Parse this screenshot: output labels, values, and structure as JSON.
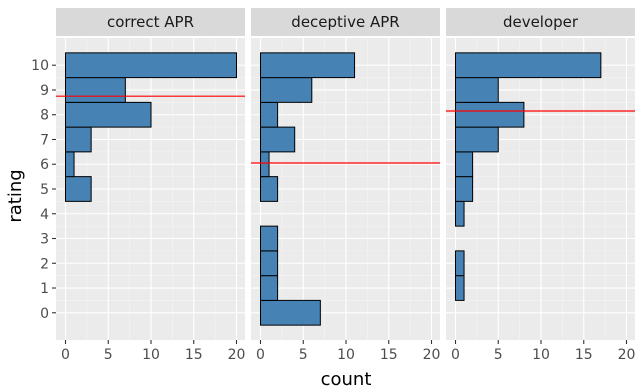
{
  "chart_data": {
    "type": "bar",
    "orientation": "horizontal",
    "xlabel": "count",
    "ylabel": "rating",
    "categories": [
      "0",
      "1",
      "2",
      "3",
      "4",
      "5",
      "6",
      "7",
      "8",
      "9",
      "10"
    ],
    "xlim": [
      0,
      20
    ],
    "xticks": [
      0,
      5,
      10,
      15,
      20
    ],
    "bar_color": "#4682B4",
    "reference_line_color": "#FF0000",
    "grid": true,
    "panels": [
      {
        "name": "correct APR",
        "values": [
          0,
          0,
          0,
          0,
          0,
          3,
          1,
          3,
          10,
          7,
          20
        ],
        "reference_line": 8.75
      },
      {
        "name": "deceptive APR",
        "values": [
          7,
          2,
          2,
          2,
          0,
          2,
          1,
          4,
          2,
          6,
          11
        ],
        "reference_line": 6.05
      },
      {
        "name": "developer",
        "values": [
          0,
          1,
          1,
          0,
          1,
          2,
          2,
          5,
          8,
          5,
          17
        ],
        "reference_line": 8.15
      }
    ]
  }
}
